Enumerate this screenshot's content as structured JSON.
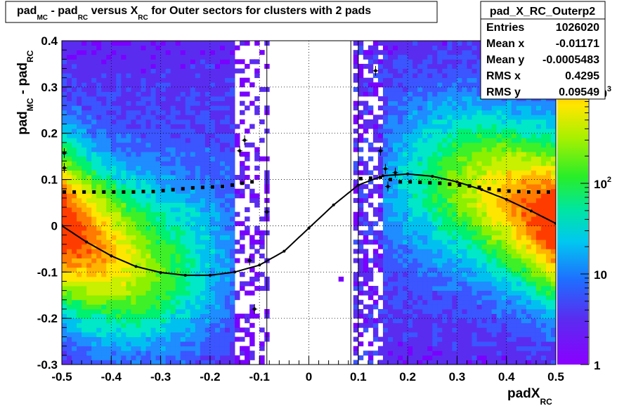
{
  "chart_data": {
    "type": "heatmap",
    "title_parts": {
      "t1": "pad",
      "t1_sub": "MC",
      "t2": " - pad",
      "t2_sub": "RC",
      "t3": " versus X",
      "t3_sub": "RC",
      "t4": " for Outer sectors for clusters with 2 pads"
    },
    "xlabel": {
      "main": "padX",
      "sub": "RC"
    },
    "ylabel": {
      "p1": "pad",
      "s1": "MC",
      "p2": " - pad",
      "s2": "RC"
    },
    "xlim": [
      -0.5,
      0.5
    ],
    "ylim": [
      -0.3,
      0.4
    ],
    "x_ticks": [
      "-0.5",
      "-0.4",
      "-0.3",
      "-0.2",
      "-0.1",
      "0",
      "0.1",
      "0.2",
      "0.3",
      "0.4",
      "0.5"
    ],
    "y_ticks": [
      "-0.3",
      "-0.2",
      "-0.1",
      "0",
      "0.1",
      "0.2",
      "0.3",
      "0.4"
    ],
    "z_scale": "log",
    "z_ticks": [
      "1",
      "10",
      "10",
      "10"
    ],
    "z_tick_sups": [
      "",
      "",
      "2",
      "3"
    ],
    "grid": true,
    "stats_box": {
      "title": "pad_X_RC_Outerp2",
      "rows": [
        {
          "label": "Entries",
          "value": "1026020"
        },
        {
          "label": "Mean x",
          "value": "-0.01171"
        },
        {
          "label": "Mean y",
          "value": "-0.0005483"
        },
        {
          "label": "RMS x",
          "value": "0.4295"
        },
        {
          "label": "RMS y",
          "value": "0.09549"
        }
      ]
    },
    "fit_curve": {
      "description_values": [
        [
          -0.5,
          0.0
        ],
        [
          -0.45,
          -0.035
        ],
        [
          -0.4,
          -0.065
        ],
        [
          -0.35,
          -0.088
        ],
        [
          -0.3,
          -0.101
        ],
        [
          -0.25,
          -0.107
        ],
        [
          -0.2,
          -0.107
        ],
        [
          -0.15,
          -0.1
        ],
        [
          -0.1,
          -0.085
        ],
        [
          -0.05,
          -0.055
        ],
        [
          0.0,
          -0.005
        ],
        [
          0.05,
          0.045
        ],
        [
          0.1,
          0.088
        ],
        [
          0.15,
          0.108
        ],
        [
          0.2,
          0.112
        ],
        [
          0.25,
          0.107
        ],
        [
          0.3,
          0.095
        ],
        [
          0.35,
          0.078
        ],
        [
          0.4,
          0.057
        ],
        [
          0.45,
          0.032
        ],
        [
          0.5,
          0.005
        ]
      ]
    },
    "profile_series": {
      "points": [
        [
          -0.495,
          0.073
        ],
        [
          -0.475,
          0.073
        ],
        [
          -0.455,
          0.073
        ],
        [
          -0.435,
          0.073
        ],
        [
          -0.415,
          0.073
        ],
        [
          -0.395,
          0.073
        ],
        [
          -0.375,
          0.073
        ],
        [
          -0.355,
          0.073
        ],
        [
          -0.335,
          0.074
        ],
        [
          -0.315,
          0.074
        ],
        [
          -0.295,
          0.076
        ],
        [
          -0.275,
          0.078
        ],
        [
          -0.255,
          0.08
        ],
        [
          -0.235,
          0.082
        ],
        [
          -0.215,
          0.083
        ],
        [
          -0.195,
          0.084
        ],
        [
          -0.175,
          0.085
        ],
        [
          -0.155,
          0.088
        ],
        [
          -0.135,
          0.092
        ],
        [
          -0.115,
          0.095
        ],
        [
          0.105,
          0.102
        ],
        [
          0.125,
          0.103
        ],
        [
          0.145,
          0.105
        ],
        [
          0.165,
          0.1
        ],
        [
          0.185,
          0.095
        ],
        [
          0.205,
          0.095
        ],
        [
          0.225,
          0.094
        ],
        [
          0.245,
          0.093
        ],
        [
          0.265,
          0.092
        ],
        [
          0.285,
          0.09
        ],
        [
          0.305,
          0.088
        ],
        [
          0.325,
          0.086
        ],
        [
          0.345,
          0.083
        ],
        [
          0.365,
          0.08
        ],
        [
          0.385,
          0.077
        ],
        [
          0.405,
          0.075
        ],
        [
          0.425,
          0.074
        ],
        [
          0.445,
          0.073
        ],
        [
          0.465,
          0.073
        ],
        [
          0.485,
          0.073
        ]
      ],
      "outliers": [
        [
          -0.495,
          0.157
        ],
        [
          -0.495,
          0.125
        ],
        [
          -0.14,
          0.162
        ],
        [
          -0.13,
          0.185
        ],
        [
          -0.12,
          -0.075
        ],
        [
          -0.11,
          -0.18
        ],
        [
          -0.085,
          0.03
        ],
        [
          0.135,
          0.335
        ],
        [
          0.145,
          0.162
        ],
        [
          0.155,
          0.123
        ],
        [
          0.175,
          0.115
        ],
        [
          0.16,
          0.085
        ]
      ]
    }
  }
}
